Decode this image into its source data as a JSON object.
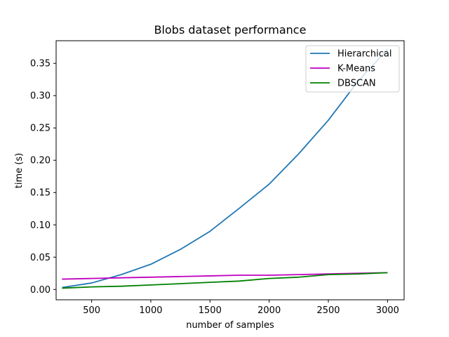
{
  "chart_data": {
    "type": "line",
    "title": "Blobs dataset performance",
    "xlabel": "number of samples",
    "ylabel": "time (s)",
    "xlim": [
      200,
      3140
    ],
    "ylim": [
      -0.016,
      0.385
    ],
    "xticks": [
      500,
      1000,
      1500,
      2000,
      2500,
      3000
    ],
    "xtick_labels": [
      "500",
      "1000",
      "1500",
      "2000",
      "2500",
      "3000"
    ],
    "yticks": [
      0.0,
      0.05,
      0.1,
      0.15,
      0.2,
      0.25,
      0.3,
      0.35
    ],
    "ytick_labels": [
      "0.00",
      "0.05",
      "0.10",
      "0.15",
      "0.20",
      "0.25",
      "0.30",
      "0.35"
    ],
    "grid": false,
    "legend_position": "top-right",
    "x": [
      250,
      500,
      750,
      1000,
      1250,
      1500,
      1750,
      2000,
      2250,
      2500,
      2750,
      3000
    ],
    "series": [
      {
        "name": "Hierarchical",
        "color": "#1f77b4",
        "values": [
          0.003,
          0.01,
          0.023,
          0.039,
          0.062,
          0.09,
          0.126,
          0.163,
          0.21,
          0.262,
          0.322,
          0.372
        ]
      },
      {
        "name": "K-Means",
        "color": "#bf00bf",
        "values": [
          0.016,
          0.017,
          0.018,
          0.019,
          0.02,
          0.021,
          0.022,
          0.022,
          0.023,
          0.024,
          0.025,
          0.026
        ]
      },
      {
        "name": "DBSCAN",
        "color": "#008000",
        "values": [
          0.002,
          0.004,
          0.005,
          0.007,
          0.009,
          0.011,
          0.013,
          0.017,
          0.019,
          0.023,
          0.024,
          0.026
        ]
      }
    ]
  }
}
